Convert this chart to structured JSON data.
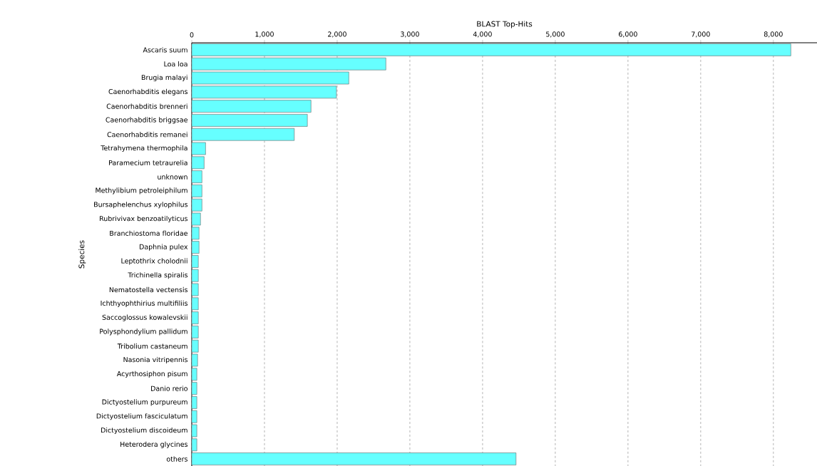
{
  "chart_data": {
    "type": "bar",
    "orientation": "horizontal",
    "xlabel": "BLAST Top-Hits",
    "ylabel": "Species",
    "categories": [
      "Ascaris suum",
      "Loa loa",
      "Brugia malayi",
      "Caenorhabditis elegans",
      "Caenorhabditis brenneri",
      "Caenorhabditis briggsae",
      "Caenorhabditis remanei",
      "Tetrahymena thermophila",
      "Paramecium tetraurelia",
      "unknown",
      "Methylibium petroleiphilum",
      "Bursaphelenchus xylophilus",
      "Rubrivivax benzoatilyticus",
      "Branchiostoma floridae",
      "Daphnia pulex",
      "Leptothrix cholodnii",
      "Trichinella spiralis",
      "Nematostella vectensis",
      "Ichthyophthirius multifiliis",
      "Saccoglossus kowalevskii",
      "Polysphondylium pallidum",
      "Tribolium castaneum",
      "Nasonia vitripennis",
      "Acyrthosiphon pisum",
      "Danio rerio",
      "Dictyostelium purpureum",
      "Dictyostelium fasciculatum",
      "Dictyostelium discoideum",
      "Heterodera glycines",
      "others"
    ],
    "values": [
      8240,
      2670,
      2160,
      1990,
      1640,
      1590,
      1410,
      190,
      170,
      140,
      140,
      140,
      120,
      100,
      100,
      90,
      90,
      90,
      90,
      90,
      90,
      90,
      80,
      70,
      70,
      70,
      70,
      70,
      70,
      4460
    ],
    "color": "#66ffff",
    "xlim": [
      0,
      8600
    ],
    "xticks": [
      0,
      {
        "value": 1000,
        "label": "1,000"
      },
      {
        "value": 2000,
        "label": "2,000"
      },
      {
        "value": 3000,
        "label": "3,000"
      },
      {
        "value": 4000,
        "label": "4,000"
      },
      {
        "value": 5000,
        "label": "5,000"
      },
      {
        "value": 6000,
        "label": "6,000"
      },
      {
        "value": 7000,
        "label": "7,000"
      },
      {
        "value": 8000,
        "label": "8,000"
      }
    ],
    "grid": "x"
  }
}
